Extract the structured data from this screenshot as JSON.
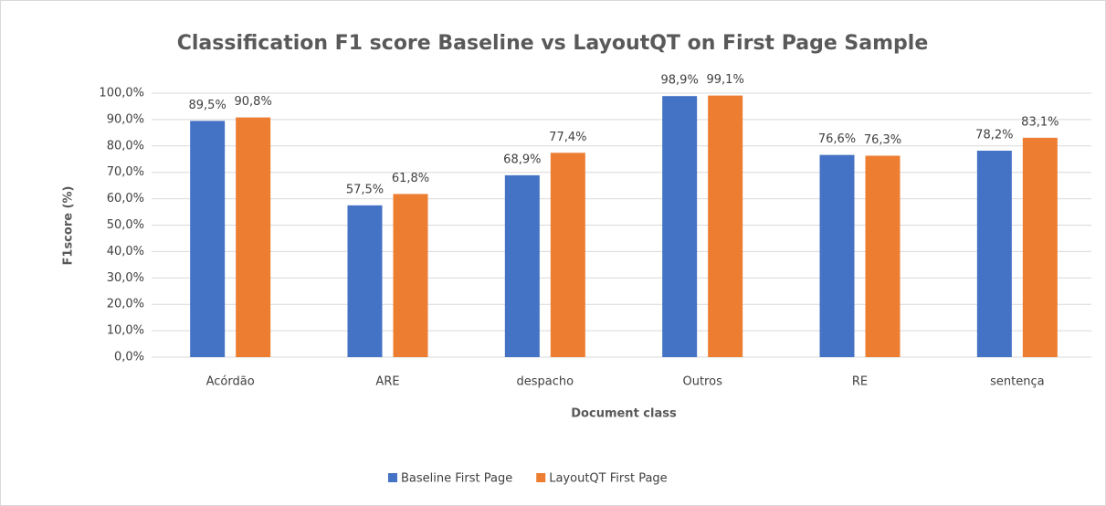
{
  "chart_data": {
    "type": "bar",
    "title": "Classification F1 score Baseline vs LayoutQT on First Page Sample",
    "x_label": "Document class",
    "y_label": "F1score (%)",
    "categories": [
      "Acórdão",
      "ARE",
      "despacho",
      "Outros",
      "RE",
      "sentença"
    ],
    "series": [
      {
        "name": "Baseline First Page",
        "color": "#4472c4",
        "values": [
          89.5,
          57.5,
          68.9,
          98.9,
          76.6,
          78.2
        ],
        "value_labels": [
          "89,5%",
          "57,5%",
          "68,9%",
          "98,9%",
          "76,6%",
          "78,2%"
        ]
      },
      {
        "name": "LayoutQT First Page",
        "color": "#ed7d31",
        "values": [
          90.8,
          61.8,
          77.4,
          99.1,
          76.3,
          83.1
        ],
        "value_labels": [
          "90,8%",
          "61,8%",
          "77,4%",
          "99,1%",
          "76,3%",
          "83,1%"
        ]
      }
    ],
    "ylim": [
      0,
      100
    ],
    "yticks": [
      {
        "value": 0,
        "label": "0,0%"
      },
      {
        "value": 10,
        "label": "10,0%"
      },
      {
        "value": 20,
        "label": "20,0%"
      },
      {
        "value": 30,
        "label": "30,0%"
      },
      {
        "value": 40,
        "label": "40,0%"
      },
      {
        "value": 50,
        "label": "50,0%"
      },
      {
        "value": 60,
        "label": "60,0%"
      },
      {
        "value": 70,
        "label": "70,0%"
      },
      {
        "value": 80,
        "label": "80,0%"
      },
      {
        "value": 90,
        "label": "90,0%"
      },
      {
        "value": 100,
        "label": "100,0%"
      }
    ],
    "grid": true,
    "legend": "bottom"
  }
}
